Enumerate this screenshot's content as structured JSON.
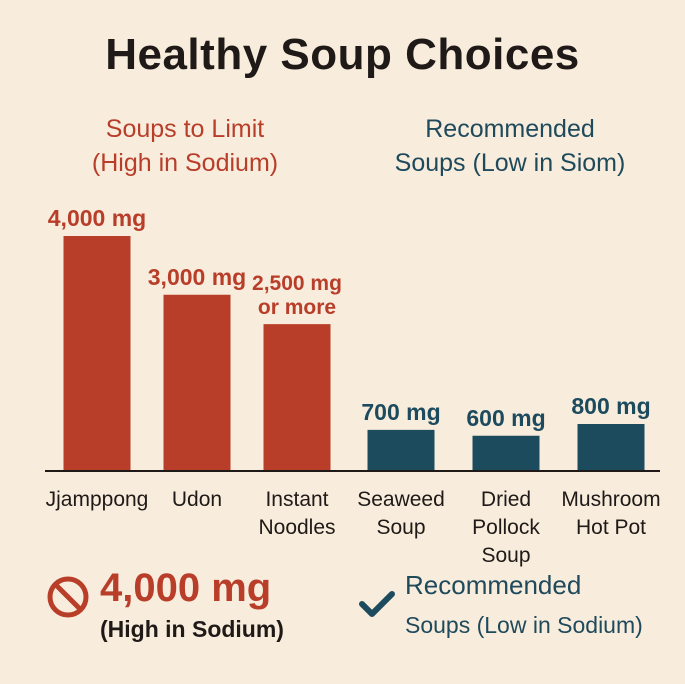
{
  "title": "Healthy Soup Choices",
  "groups": {
    "limit": {
      "line1": "Soups to Limit",
      "line2": "(High in Sodium)"
    },
    "recommended": {
      "line1": "Recommended",
      "line2": "Soups (Low in Siom)"
    }
  },
  "footer": {
    "left_value": "4,000 mg",
    "left_sub": "(High in Sodium)",
    "left_icon": "prohibited-icon",
    "right_title": "Recommended",
    "right_sub": "Soups (Low in Sodium)",
    "right_icon": "checkmark-icon"
  },
  "colors": {
    "high": "#b83e2a",
    "low": "#1d4b5e",
    "text_dark": "#1f1a17",
    "background": "#f8ecdc"
  },
  "chart_data": {
    "type": "bar",
    "categories": [
      "Jjamppong",
      "Udon",
      "Instant Noodles",
      "Seaweed Soup",
      "Dried Pollock Soup",
      "Mushroom Hot Pot"
    ],
    "category_lines": [
      [
        "Jjamppong"
      ],
      [
        "Udon"
      ],
      [
        "Instant",
        "Noodles"
      ],
      [
        "Seaweed",
        "Soup"
      ],
      [
        "Dried",
        "Pollock",
        "Soup"
      ],
      [
        "Mushroom",
        "Hot Pot"
      ]
    ],
    "values": [
      4000,
      3000,
      2500,
      700,
      600,
      800
    ],
    "value_labels": [
      [
        "4,000 mg"
      ],
      [
        "3,000 mg"
      ],
      [
        "2,500 mg",
        "or more"
      ],
      [
        "700 mg"
      ],
      [
        "600 mg"
      ],
      [
        "800 mg"
      ]
    ],
    "groups": [
      "high",
      "high",
      "high",
      "low",
      "low",
      "low"
    ],
    "ylim": [
      0,
      4000
    ],
    "grid": false,
    "title": "Healthy Soup Choices",
    "xlabel": "",
    "ylabel": ""
  }
}
